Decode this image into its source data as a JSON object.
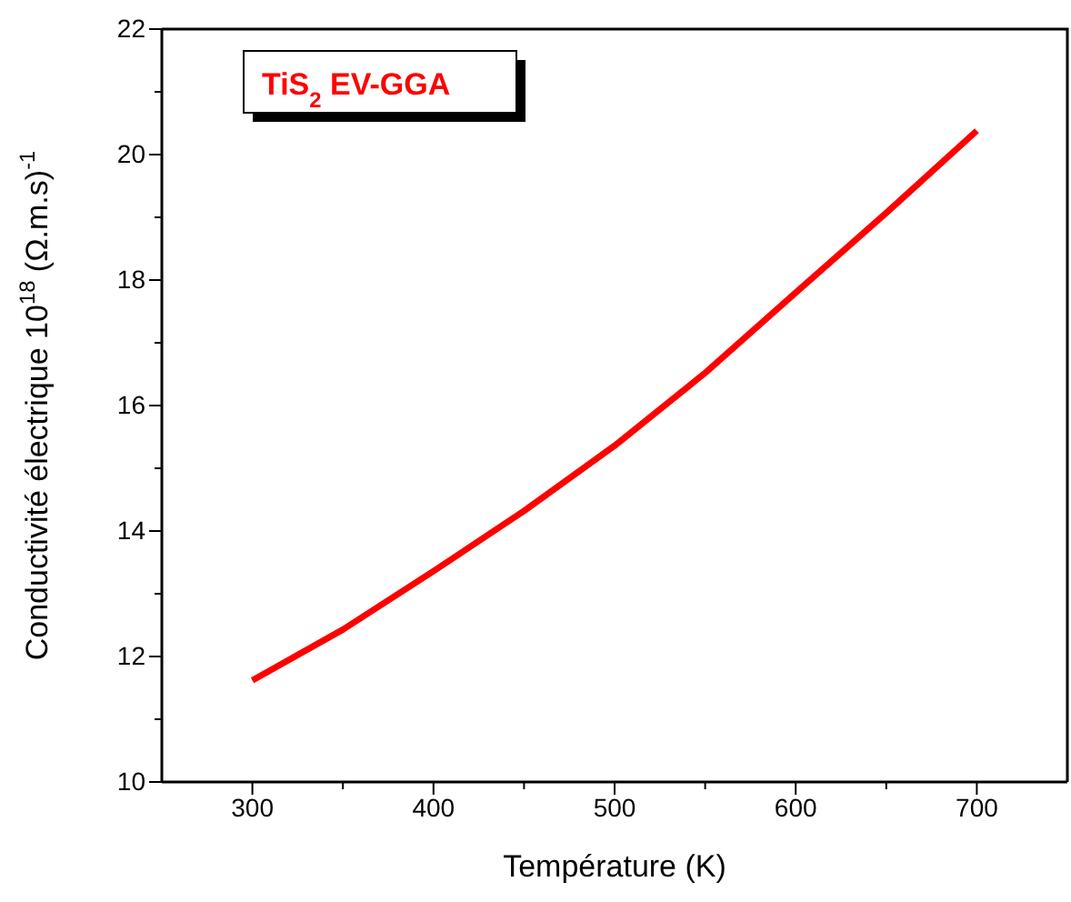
{
  "chart_data": {
    "type": "line",
    "xlabel": "Température (K)",
    "ylabel": "Conductivité électrique 10$^{18}$  (Ω.m.s)$^{-1}$",
    "x": [
      300,
      350,
      400,
      450,
      500,
      550,
      600,
      650,
      700
    ],
    "series": [
      {
        "name": "TiS$_{2}$ EV-GGA",
        "color": "#ff0000",
        "values": [
          11.62,
          12.43,
          13.36,
          14.32,
          15.36,
          16.52,
          17.8,
          19.07,
          20.38
        ]
      }
    ],
    "xlim": [
      250,
      750
    ],
    "ylim": [
      10,
      22
    ],
    "xticks": [
      300,
      {
        "value": 350,
        "label": null
      },
      400,
      {
        "value": 450,
        "label": null
      },
      500,
      {
        "value": 550,
        "label": null
      },
      600,
      {
        "value": 650,
        "label": null
      },
      700
    ],
    "yticks": [
      10,
      {
        "value": 11,
        "label": null
      },
      12,
      {
        "value": 13,
        "label": null
      },
      14,
      {
        "value": 15,
        "label": null
      },
      16,
      {
        "value": 17,
        "label": null
      },
      18,
      {
        "value": 19,
        "label": null
      },
      20,
      {
        "value": 21,
        "label": null
      },
      22
    ],
    "legend": "top left",
    "grid": false,
    "marker": "none",
    "line_style": "solid"
  }
}
